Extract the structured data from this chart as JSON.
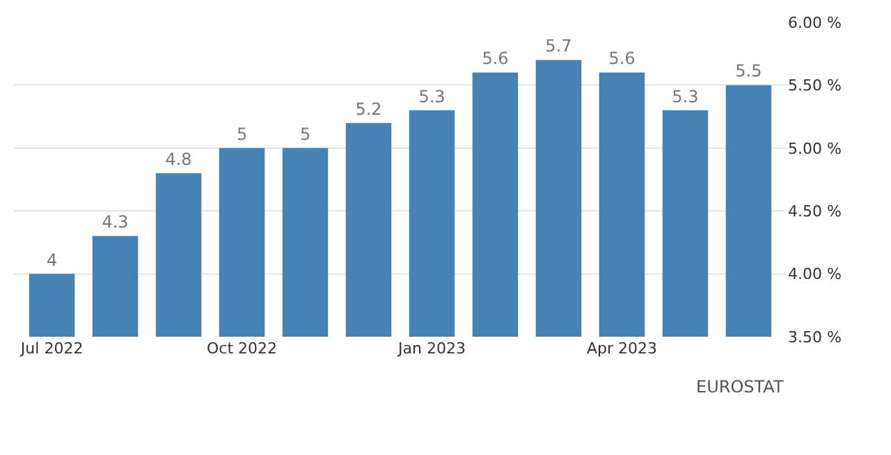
{
  "chart_data": {
    "type": "bar",
    "categories": [
      "Jul 2022",
      null,
      null,
      "Oct 2022",
      null,
      null,
      "Jan 2023",
      null,
      null,
      "Apr 2023",
      null,
      null
    ],
    "values": [
      4,
      4.3,
      4.8,
      5,
      5,
      5.2,
      5.3,
      5.6,
      5.7,
      5.6,
      5.3,
      5.5
    ],
    "color": "#4682b4",
    "data_labels": true,
    "ylim": [
      3.5,
      6
    ],
    "yticks": [
      {
        "value": 3.5,
        "label": "3.50 %"
      },
      {
        "value": 4,
        "label": "4.00 %"
      },
      {
        "value": 4.5,
        "label": "4.50 %"
      },
      {
        "value": 5,
        "label": "5.00 %"
      },
      {
        "value": 5.5,
        "label": "5.50 %"
      },
      {
        "value": 6,
        "label": "6.00 %"
      }
    ],
    "grid": "y",
    "legend": false,
    "annotations": [
      "EUROSTAT"
    ]
  }
}
